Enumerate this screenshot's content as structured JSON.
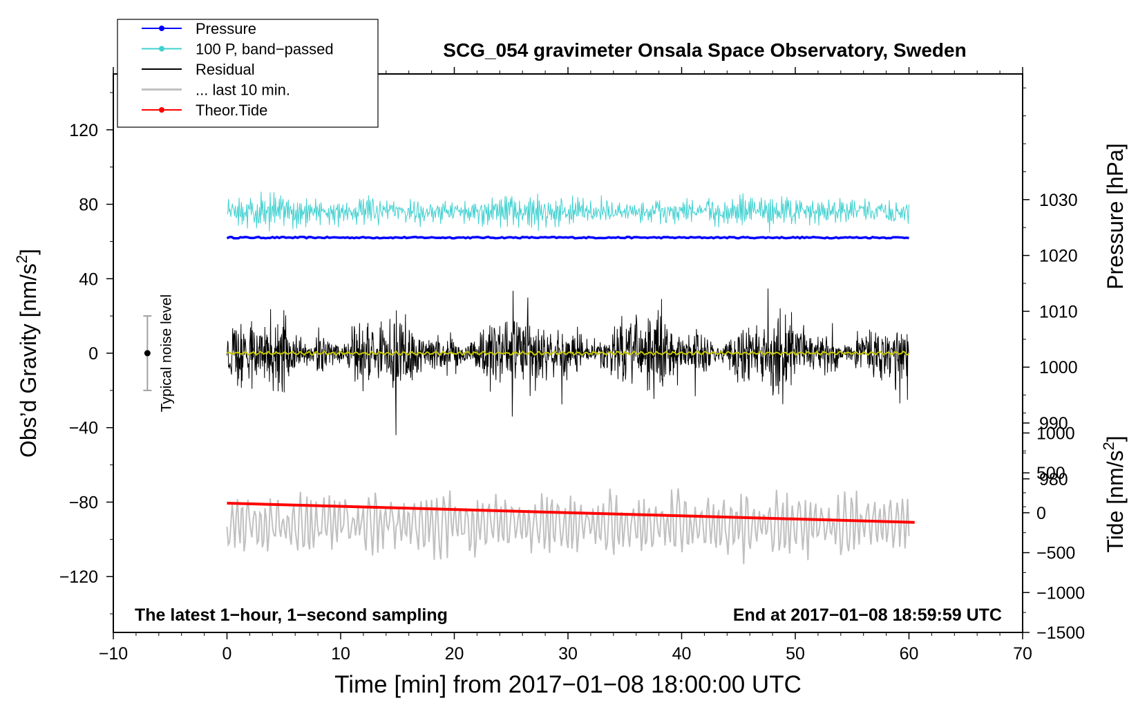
{
  "chart_data": {
    "type": "line",
    "title": "SCG_054 gravimeter Onsala Space Observatory, Sweden",
    "xlabel": "Time [min] from 2017−01−08 18:00:00 UTC",
    "ylabel_left_main": "Obs’d Gravity [nm/s",
    "ylabel_left_sup": "2",
    "ylabel_left_end": "]",
    "ylabel_right_top": "Pressure [hPa]",
    "ylabel_right_bottom_main": "Tide [nm/s",
    "ylabel_right_bottom_sup": "2",
    "ylabel_right_bottom_end": "]",
    "xlim": [
      -10,
      70
    ],
    "ylim": [
      -150,
      150
    ],
    "pressure_axis": {
      "ylim": [
        952.5,
        1052.5
      ],
      "ticks": [
        980,
        990,
        1000,
        1010,
        1020,
        1030
      ]
    },
    "tide_axis": {
      "ylim": [
        -1500,
        5500
      ],
      "ticks": [
        -1500,
        -1000,
        -500,
        0,
        500,
        1000
      ]
    },
    "x_ticks": [
      -10,
      0,
      10,
      20,
      30,
      40,
      50,
      60,
      70
    ],
    "x_tick_labels": [
      "−10",
      "0",
      "10",
      "20",
      "30",
      "40",
      "50",
      "60",
      "70"
    ],
    "y_ticks": [
      -120,
      -80,
      -40,
      0,
      40,
      80,
      120
    ],
    "y_tick_labels": [
      "−120",
      "−80",
      "−40",
      "0",
      "40",
      "80",
      "120"
    ],
    "pressure_tick_labels": [
      "980",
      "990",
      "1000",
      "1010",
      "1020",
      "1030"
    ],
    "tide_tick_labels": [
      "−1500",
      "−1000",
      "−500",
      "0",
      "500",
      "1000"
    ],
    "series": [
      {
        "name": "Pressure",
        "color": "#0000ff",
        "axis": "pressure",
        "x_range": [
          0,
          60
        ],
        "value": 1023.2,
        "amplitude": 0.25
      },
      {
        "name": "100 P, band−passed",
        "color": "#40d0d0",
        "axis": "gravity",
        "x_range": [
          0,
          60
        ],
        "offset": 76,
        "amplitude": 8
      },
      {
        "name": "Residual",
        "color": "#000000",
        "axis": "gravity",
        "x_range": [
          0,
          60
        ],
        "offset": 0,
        "amplitude": 16
      },
      {
        "name": "... last 10 min.",
        "color": "#c0c0c0",
        "axis": "gravity",
        "x_range": [
          0,
          60
        ],
        "offset": -92,
        "amplitude": 14
      },
      {
        "name": "Theor.Tide",
        "color": "#ff0000",
        "axis": "tide",
        "x_range": [
          0,
          60.5
        ],
        "start": 120,
        "end": -120
      }
    ],
    "smoothed_residual": {
      "color": "#c8c800",
      "offset": 0,
      "amplitude": 0.6
    },
    "noise_bar": {
      "label": "Typical noise level",
      "x": -7,
      "center": 0,
      "low": -20,
      "high": 20
    },
    "annotations": {
      "bottom_left": "The latest 1−hour, 1−second sampling",
      "bottom_right": "End at 2017−01−08 18:59:59 UTC"
    },
    "legend": [
      {
        "label": "Pressure",
        "color": "#0000ff",
        "marker": true
      },
      {
        "label": "100 P, band−passed",
        "color": "#40d0d0",
        "marker": true
      },
      {
        "label": "Residual",
        "color": "#000000",
        "marker": false
      },
      {
        "label": "... last 10 min.",
        "color": "#c0c0c0",
        "marker": false
      },
      {
        "label": "Theor.Tide",
        "color": "#ff0000",
        "marker": true
      }
    ]
  }
}
